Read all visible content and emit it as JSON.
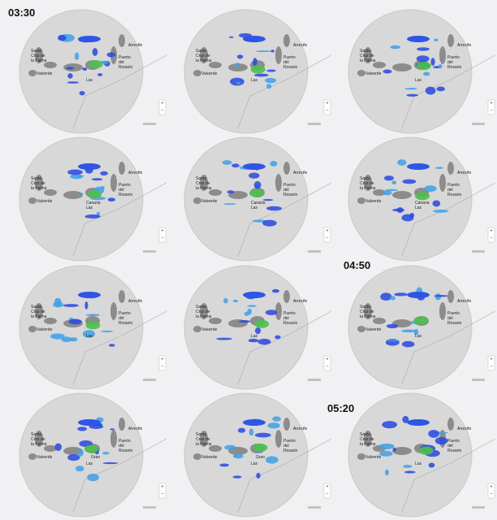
{
  "times": [
    "03:30",
    "04:50",
    "05:20"
  ],
  "places": {
    "santa_cruz": [
      "Santa",
      "Cruz de",
      "la Palma"
    ],
    "valverde": "Valverde",
    "arrecife": "Arrecife",
    "puerto": [
      "Puerto",
      "del",
      "Rosario"
    ],
    "las": "Las",
    "canaria": "Canaria",
    "gran": "Gran"
  },
  "zoom": {
    "in": "+",
    "out": "−"
  }
}
